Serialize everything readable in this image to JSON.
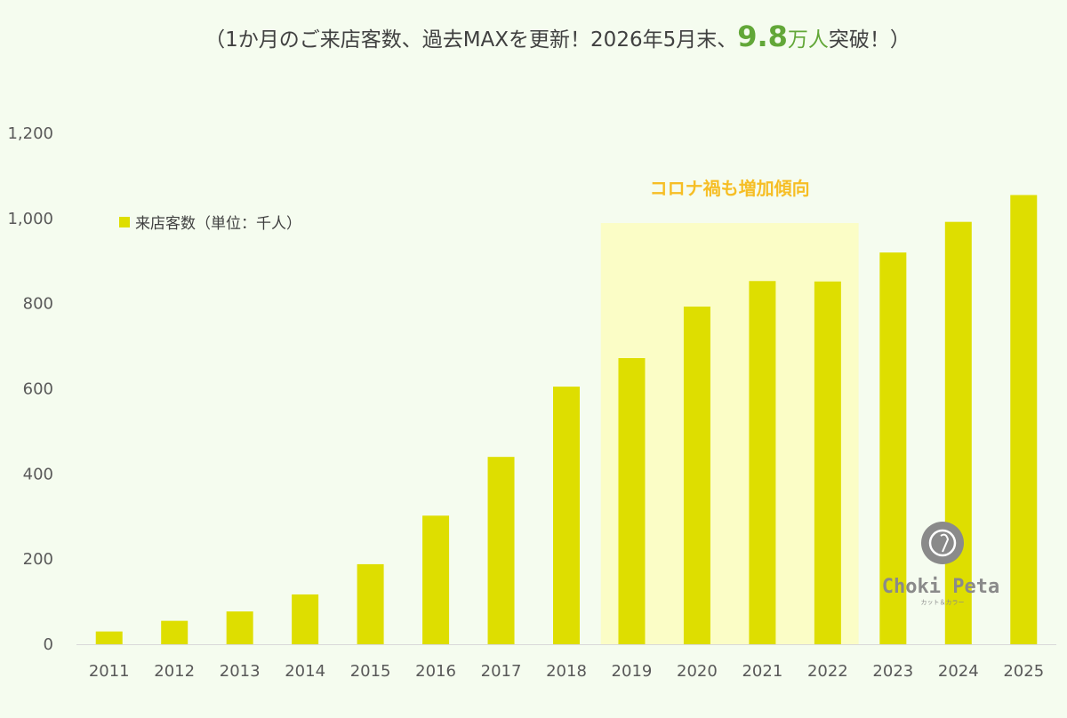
{
  "chart_data": {
    "type": "bar",
    "title_parts": {
      "before": "（1か月のご来店客数、過去MAXを更新！2026年5月末、",
      "highlight": "9.8",
      "unit": "万人",
      "after": "突破！）"
    },
    "categories": [
      "2011",
      "2012",
      "2013",
      "2014",
      "2015",
      "2016",
      "2017",
      "2018",
      "2019",
      "2020",
      "2021",
      "2022",
      "2023",
      "2024",
      "2025"
    ],
    "series": [
      {
        "name": "来店客数（単位：千人）",
        "color": "#dede00",
        "values": [
          30,
          55,
          77,
          117,
          188,
          302,
          440,
          605,
          672,
          793,
          853,
          852,
          920,
          992,
          1055
        ]
      }
    ],
    "ylim": [
      0,
      1200
    ],
    "yticks": [
      0,
      200,
      400,
      600,
      800,
      1000,
      1200
    ],
    "ytick_labels": [
      "0",
      "200",
      "400",
      "600",
      "800",
      "1,000",
      "1,200"
    ],
    "grid": false,
    "legend_position": "top-left",
    "annotation": {
      "text": "コロナ禍も増加傾向",
      "color": "#f6be25",
      "highlight_from": "2019",
      "highlight_to": "2022",
      "highlight_color": "#fbfdc6"
    },
    "logo": {
      "name": "Choki Peta",
      "subtitle": "カット＆カラー"
    }
  }
}
